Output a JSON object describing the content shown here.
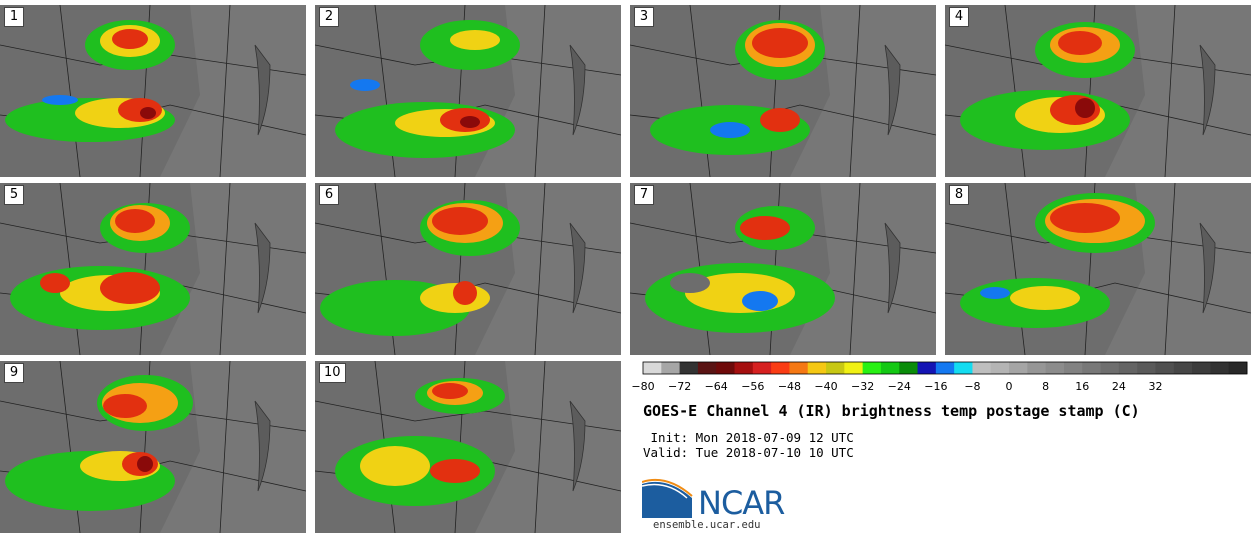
{
  "panels": [
    {
      "label": "1"
    },
    {
      "label": "2"
    },
    {
      "label": "3"
    },
    {
      "label": "4"
    },
    {
      "label": "5"
    },
    {
      "label": "6"
    },
    {
      "label": "7"
    },
    {
      "label": "8"
    },
    {
      "label": "9"
    },
    {
      "label": "10"
    }
  ],
  "colorbar": {
    "ticks": [
      "−80",
      "−72",
      "−64",
      "−56",
      "−48",
      "−40",
      "−32",
      "−24",
      "−16",
      "−8",
      "0",
      "8",
      "16",
      "24",
      "32"
    ],
    "colors": [
      "#d9d9d9",
      "#a6a6a6",
      "#333333",
      "#5a1414",
      "#6e0a0a",
      "#a50f0f",
      "#d62020",
      "#fa3c14",
      "#f57814",
      "#f5c814",
      "#c8c814",
      "#f0f014",
      "#28f014",
      "#14c814",
      "#0a8c0a",
      "#1414b4",
      "#1478f0",
      "#14dcf0",
      "#bebebe",
      "#b4b4b4",
      "#a5a5a5",
      "#969696",
      "#8c8c8c",
      "#828282",
      "#787878",
      "#6e6e6e",
      "#646464",
      "#5a5a5a",
      "#505050",
      "#464646",
      "#3c3c3c",
      "#323232",
      "#282828"
    ]
  },
  "title": "GOES-E Channel 4 (IR) brightness temp postage stamp (C)",
  "init_line": " Init: Mon 2018-07-09 12 UTC",
  "valid_line": "Valid: Tue 2018-07-10 10 UTC",
  "logo": {
    "name": "NCAR",
    "url": "ensemble.ucar.edu"
  }
}
